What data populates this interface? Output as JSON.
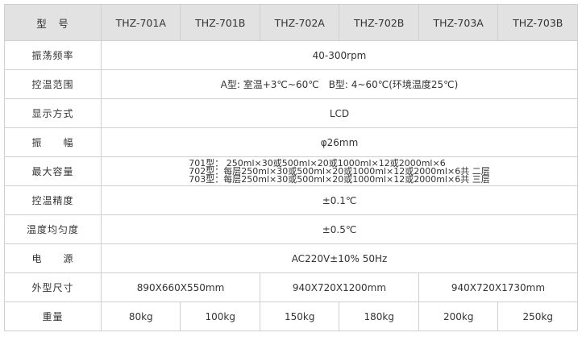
{
  "header": {
    "label": "型　号",
    "models": [
      "THZ-701A",
      "THZ-701B",
      "THZ-702A",
      "THZ-702B",
      "THZ-703A",
      "THZ-703B"
    ]
  },
  "rows": [
    {
      "label": "振荡频率",
      "value": "40-300rpm"
    },
    {
      "label": "控温范围",
      "value": "A型: 室温+3℃~60℃　B型: 4~60℃(环境温度25℃)"
    },
    {
      "label": "显示方式",
      "value": "LCD"
    },
    {
      "label": "振　　幅",
      "value": "φ26mm"
    },
    {
      "label": "最大容量",
      "lines": [
        "701型：  250ml×30或500ml×20或1000ml×12或2000ml×6",
        "702型：每层250ml×30或500ml×20或1000ml×12或2000ml×6共 二层",
        "703型：每层250ml×30或500ml×20或1000ml×12或2000ml×6共 三层"
      ]
    },
    {
      "label": "控温精度",
      "value": "±0.1℃"
    },
    {
      "label": "温度均匀度",
      "value": "±0.5℃"
    },
    {
      "label": "电　　源",
      "value": "AC220V±10%  50Hz"
    }
  ],
  "size": {
    "label": "外型尺寸",
    "values": [
      "890X660X550mm",
      "940X720X1200mm",
      "940X720X1730mm"
    ]
  },
  "weight": {
    "label": "重量",
    "values": [
      "80kg",
      "100kg",
      "150kg",
      "180kg",
      "200kg",
      "250kg"
    ]
  }
}
